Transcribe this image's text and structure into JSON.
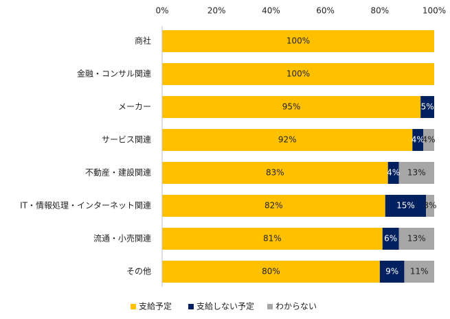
{
  "chart_data": {
    "type": "bar",
    "orientation": "horizontal",
    "stacked": true,
    "title": "",
    "xlabel": "",
    "ylabel": "",
    "xlim": [
      0,
      100
    ],
    "x_ticks": [
      "0%",
      "20%",
      "40%",
      "60%",
      "80%",
      "100%"
    ],
    "categories": [
      "商社",
      "金融・コンサル関連",
      "メーカー",
      "サービス関連",
      "不動産・建設関連",
      "IT・情報処理・インターネット関連",
      "流通・小売関連",
      "その他"
    ],
    "series": [
      {
        "name": "支給予定",
        "color": "#FFC000",
        "label_color": "#222222",
        "values": [
          100,
          100,
          95,
          92,
          83,
          82,
          81,
          80
        ],
        "labels": [
          "100%",
          "100%",
          "95%",
          "92%",
          "83%",
          "82%",
          "81%",
          "80%"
        ]
      },
      {
        "name": "支給しない予定",
        "color": "#002060",
        "label_color": "#ffffff",
        "values": [
          0,
          0,
          5,
          4,
          4,
          15,
          6,
          9
        ],
        "labels": [
          "",
          "",
          "5%",
          "4%",
          "4%",
          "15%",
          "6%",
          "9%"
        ]
      },
      {
        "name": "わからない",
        "color": "#A6A6A6",
        "label_color": "#222222",
        "values": [
          0,
          0,
          0,
          4,
          13,
          3,
          13,
          11
        ],
        "labels": [
          "",
          "",
          "",
          "4%",
          "13%",
          "3%",
          "13%",
          "11%"
        ]
      }
    ],
    "legend": "bottom-center",
    "grid": false
  }
}
